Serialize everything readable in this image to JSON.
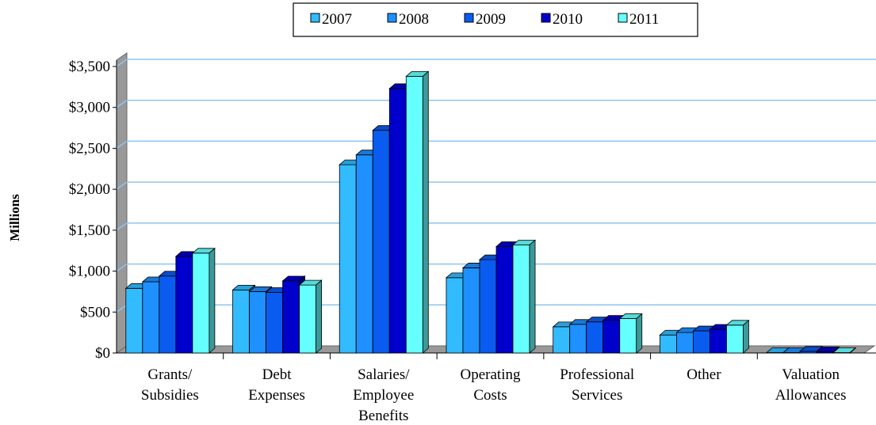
{
  "chart_data": {
    "type": "bar3d",
    "y_label": "Millions",
    "categories": [
      "Grants/\nSubsidies",
      "Debt\nExpenses",
      "Salaries/\nEmployee\nBenefits",
      "Operating\nCosts",
      "Professional\nServices",
      "Other",
      "Valuation\nAllowances"
    ],
    "series": [
      {
        "name": "2007",
        "color": "#33bbff",
        "values": [
          790,
          770,
          2300,
          920,
          320,
          220,
          5
        ]
      },
      {
        "name": "2008",
        "color": "#1e90ff",
        "values": [
          870,
          750,
          2420,
          1040,
          350,
          250,
          5
        ]
      },
      {
        "name": "2009",
        "color": "#0a5cf0",
        "values": [
          940,
          740,
          2720,
          1140,
          380,
          270,
          20
        ]
      },
      {
        "name": "2010",
        "color": "#0000cc",
        "values": [
          1180,
          880,
          3230,
          1300,
          400,
          290,
          15
        ]
      },
      {
        "name": "2011",
        "color": "#66ffff",
        "values": [
          1220,
          830,
          3380,
          1320,
          420,
          340,
          5
        ]
      }
    ],
    "ylim": [
      0,
      3500
    ],
    "yticks": [
      {
        "value": 0,
        "label": "$0"
      },
      {
        "value": 500,
        "label": "$500"
      },
      {
        "value": 1000,
        "label": "$1,000"
      },
      {
        "value": 1500,
        "label": "$1,500"
      },
      {
        "value": 2000,
        "label": "$2,000"
      },
      {
        "value": 2500,
        "label": "$2,500"
      },
      {
        "value": 3000,
        "label": "$3,000"
      },
      {
        "value": 3500,
        "label": "$3,500"
      }
    ],
    "grid": true
  }
}
